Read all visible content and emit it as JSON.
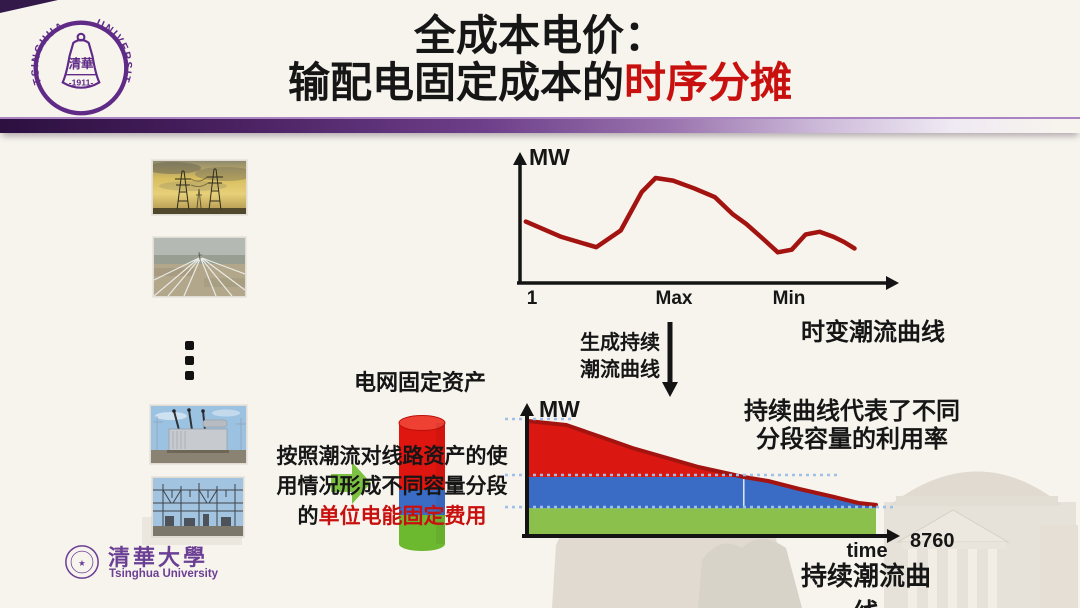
{
  "slide": {
    "title_line1": "全成本电价：",
    "title_line2_black": "输配电固定成本的",
    "title_line2_red": "时序分摊"
  },
  "university_seal": {
    "name_left": "TSINGHUA",
    "name_right": "UNIVERSITY",
    "bell_text": "清華",
    "year": "-1911-"
  },
  "left_column": {
    "photo_labels": [
      "transmission-towers-sunset",
      "transmission-lines",
      "power-transformer",
      "substation"
    ]
  },
  "center": {
    "assets_label": "电网固定资产",
    "desc_line1": "按照潮流对线路资产的使",
    "desc_line2": "用情况形成不同容量分段",
    "desc_line3_prefix": "的",
    "desc_line3_red": "单位电能固定费用"
  },
  "flow_chart": {
    "ylabel": "MW",
    "x_ticks": [
      "1",
      "Max",
      "Min"
    ],
    "caption": "时变潮流曲线"
  },
  "connector": {
    "line1": "生成持续",
    "line2": "潮流曲线"
  },
  "duration_chart": {
    "ylabel": "MW",
    "xlabel": "time",
    "x_end": "8760",
    "caption": "持续潮流曲线",
    "note_line1": "持续曲线代表了不同",
    "note_line2": "分段容量的利用率"
  },
  "footer": {
    "logo_cn": "清華大學",
    "logo_en": "Tsinghua University"
  },
  "colors": {
    "accent_purple": "#5f2b87",
    "title_red": "#c8100e",
    "curve_red": "#a31310",
    "area_red": "#da1710",
    "area_blue": "#3a6cc5",
    "area_green": "#8bc04d",
    "cylinder_green": "#6cb82f",
    "cylinder_red": "#df150f",
    "dotted_blue": "#9fc0e8",
    "arrow_green": "#7cc142"
  },
  "chart_data": [
    {
      "type": "line",
      "title": "时变潮流曲线",
      "ylabel": "MW",
      "x_tick_labels": [
        "1",
        "Max",
        "Min"
      ],
      "legend": "none",
      "grid": false,
      "points_norm": [
        [
          0.008,
          0.48
        ],
        [
          0.11,
          0.36
        ],
        [
          0.21,
          0.28
        ],
        [
          0.28,
          0.41
        ],
        [
          0.34,
          0.71
        ],
        [
          0.38,
          0.82
        ],
        [
          0.43,
          0.8
        ],
        [
          0.49,
          0.74
        ],
        [
          0.55,
          0.67
        ],
        [
          0.6,
          0.54
        ],
        [
          0.64,
          0.46
        ],
        [
          0.69,
          0.34
        ],
        [
          0.73,
          0.24
        ],
        [
          0.77,
          0.26
        ],
        [
          0.81,
          0.38
        ],
        [
          0.85,
          0.4
        ],
        [
          0.89,
          0.36
        ],
        [
          0.92,
          0.32
        ],
        [
          0.95,
          0.27
        ]
      ]
    },
    {
      "type": "area",
      "title": "持续潮流曲线",
      "ylabel": "MW",
      "xlabel": "time",
      "x_end_label": "8760",
      "x_range_hours": [
        0,
        8760
      ],
      "band_levels_norm": [
        0.243,
        0.513
      ],
      "band_colors_order": [
        "green",
        "blue",
        "red"
      ],
      "curve_points_norm": [
        [
          0.0,
          1.0
        ],
        [
          0.11,
          0.965
        ],
        [
          0.21,
          0.861
        ],
        [
          0.3,
          0.765
        ],
        [
          0.4,
          0.678
        ],
        [
          0.49,
          0.6
        ],
        [
          0.62,
          0.513
        ],
        [
          0.69,
          0.478
        ],
        [
          0.78,
          0.409
        ],
        [
          0.88,
          0.339
        ],
        [
          0.95,
          0.287
        ],
        [
          1.0,
          0.27
        ]
      ]
    }
  ]
}
